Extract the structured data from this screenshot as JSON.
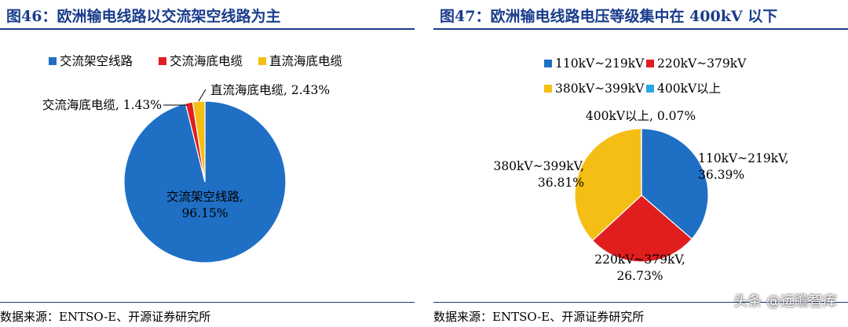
{
  "left": {
    "title": "图46：欧洲输电线路以交流架空线路为主",
    "source": "数据来源：ENTSO-E、开源证券研究所"
  },
  "right": {
    "title": "图47：欧洲输电线路电压等级集中在 400kV 以下",
    "source": "数据来源：ENTSO-E、开源证券研究所"
  },
  "watermark": "头条 @远瞻智库",
  "chart_data": [
    {
      "type": "pie",
      "title": "图46：欧洲输电线路以交流架空线路为主",
      "slices": [
        {
          "name": "交流架空线路",
          "value": 96.15,
          "label": "96.15%",
          "color": "#1f6fc5"
        },
        {
          "name": "交流海底电缆",
          "value": 1.43,
          "label": "1.43%",
          "color": "#e01e1e"
        },
        {
          "name": "直流海底电缆",
          "value": 2.43,
          "label": "2.43%",
          "color": "#f5be14"
        }
      ],
      "legend_position": "top"
    },
    {
      "type": "pie",
      "title": "图47：欧洲输电线路电压等级集中在 400kV 以下",
      "slices": [
        {
          "name": "110kV~219kV",
          "value": 36.39,
          "label": "36.39%",
          "color": "#1f6fc5"
        },
        {
          "name": "220kV~379kV",
          "value": 26.73,
          "label": "26.73%",
          "color": "#e01e1e"
        },
        {
          "name": "380kV~399kV",
          "value": 36.81,
          "label": "36.81%",
          "color": "#f5be14"
        },
        {
          "name": "400kV以上",
          "value": 0.07,
          "label": "0.07%",
          "color": "#29a9e0"
        }
      ],
      "legend_position": "top"
    }
  ]
}
